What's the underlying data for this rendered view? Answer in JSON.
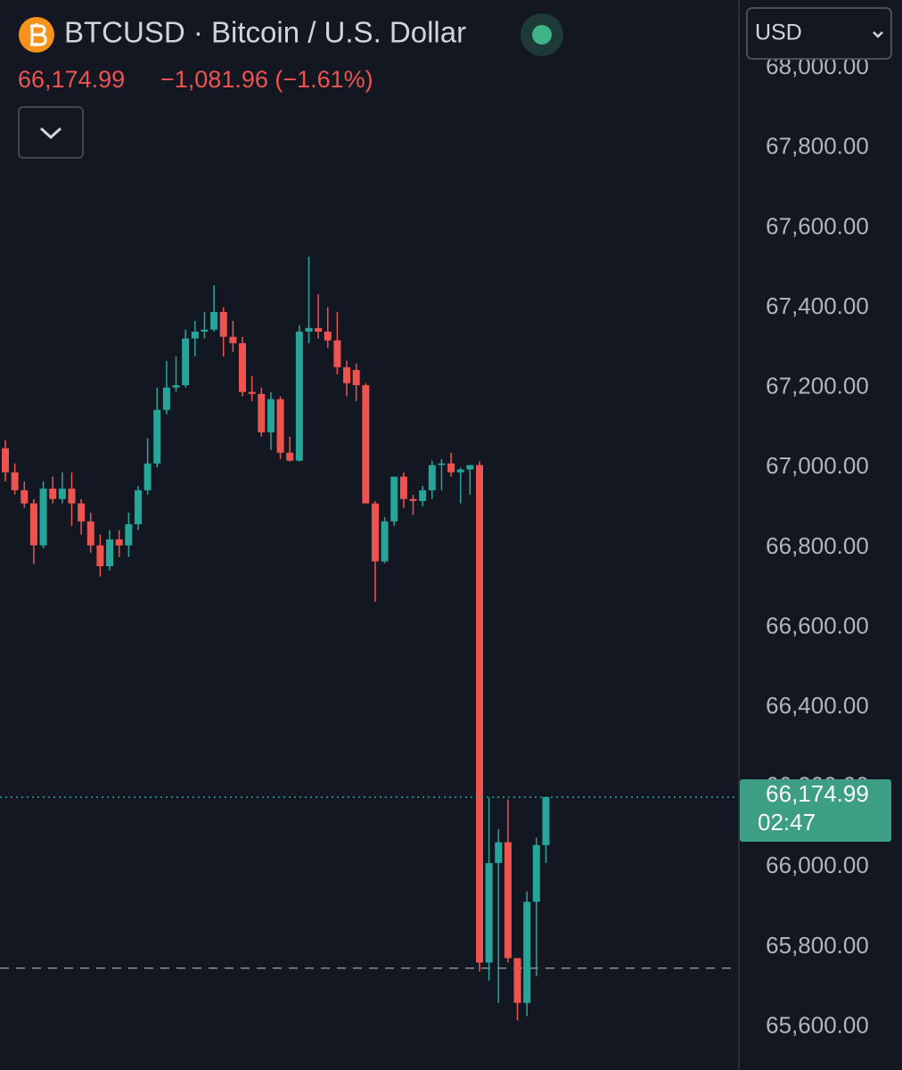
{
  "chart_data": {
    "type": "candlestick",
    "title": "BTCUSD · Bitcoin / U.S. Dollar",
    "price_label": "66,174.99",
    "change_label": "−1,081.96 (−1.61%)",
    "currency_selector": "USD",
    "up_color": "#26a69a",
    "down_color": "#ef5350",
    "open": [
      67048,
      66988,
      66943,
      66910,
      66805,
      66947,
      66921,
      66947,
      66910,
      66865,
      66805,
      66753,
      66820,
      66805,
      66858,
      66943,
      67010,
      67144,
      67200,
      67206,
      67323,
      67340,
      67345,
      67389,
      67327,
      67311,
      67189,
      67184,
      67088,
      67171,
      67037,
      67017,
      67340,
      67349,
      67340,
      67318,
      67251,
      67244,
      67206,
      66910,
      66765,
      66865,
      66977,
      66921,
      66916,
      66943,
      67006,
      67010,
      66988,
      66995,
      67006,
      65761,
      66010,
      66062,
      65772,
      65660,
      65913,
      66055
    ],
    "high": [
      67068,
      67010,
      66965,
      66921,
      66965,
      66977,
      66988,
      66988,
      66921,
      66887,
      66832,
      66843,
      66843,
      66887,
      66954,
      67073,
      67200,
      67267,
      67278,
      67345,
      67367,
      67389,
      67456,
      67401,
      67367,
      67327,
      67229,
      67200,
      67189,
      67178,
      67077,
      67356,
      67528,
      67434,
      67401,
      67389,
      67267,
      67260,
      67211,
      66916,
      66876,
      66977,
      66988,
      66932,
      66954,
      67017,
      67021,
      67037,
      67000,
      67006,
      67015,
      66174,
      66095,
      66169,
      65772,
      65939,
      66073,
      66174.99
    ],
    "low": [
      66965,
      66932,
      66899,
      66758,
      66798,
      66910,
      66910,
      66854,
      66832,
      66787,
      66727,
      66742,
      66776,
      66776,
      66843,
      66932,
      67000,
      67133,
      67189,
      67200,
      67278,
      67323,
      67340,
      67278,
      67289,
      67178,
      67166,
      67077,
      67044,
      67021,
      67015,
      67015,
      67311,
      67323,
      67300,
      67233,
      67178,
      67166,
      66910,
      66664,
      66760,
      66854,
      66899,
      66881,
      66903,
      66921,
      66943,
      66977,
      66910,
      66932,
      65739,
      65716,
      65660,
      65761,
      65616,
      65627,
      65727,
      66010
    ],
    "close": [
      66988,
      66943,
      66910,
      66805,
      66947,
      66921,
      66947,
      66910,
      66865,
      66805,
      66753,
      66820,
      66805,
      66858,
      66943,
      67010,
      67144,
      67200,
      67206,
      67323,
      67340,
      67345,
      67389,
      67327,
      67311,
      67189,
      67184,
      67088,
      67171,
      67037,
      67017,
      67340,
      67349,
      67340,
      67318,
      67251,
      67211,
      67206,
      66910,
      66765,
      66865,
      66977,
      66921,
      66916,
      66943,
      67006,
      67010,
      66988,
      66995,
      67006,
      65761,
      66010,
      66062,
      65772,
      65660,
      65913,
      66055,
      66174.99
    ],
    "ylim": [
      65492,
      68170
    ],
    "yticks": [
      {
        "value": 65600,
        "label": "65,600.00"
      },
      {
        "value": 65800,
        "label": "65,800.00"
      },
      {
        "value": 66000,
        "label": "66,000.00"
      },
      {
        "value": 66200,
        "label": "66,200.00"
      },
      {
        "value": 66400,
        "label": "66,400.00"
      },
      {
        "value": 66600,
        "label": "66,600.00"
      },
      {
        "value": 66800,
        "label": "66,800.00"
      },
      {
        "value": 67000,
        "label": "67,000.00"
      },
      {
        "value": 67200,
        "label": "67,200.00"
      },
      {
        "value": 67400,
        "label": "67,400.00"
      },
      {
        "value": 67600,
        "label": "67,600.00"
      },
      {
        "value": 67800,
        "label": "67,800.00"
      },
      {
        "value": 68000,
        "label": "68,000.00"
      }
    ],
    "grid": false,
    "last_price": {
      "value": 66174.99,
      "label": "66,174.99"
    },
    "countdown": "02:47",
    "reference_line": 65747
  }
}
